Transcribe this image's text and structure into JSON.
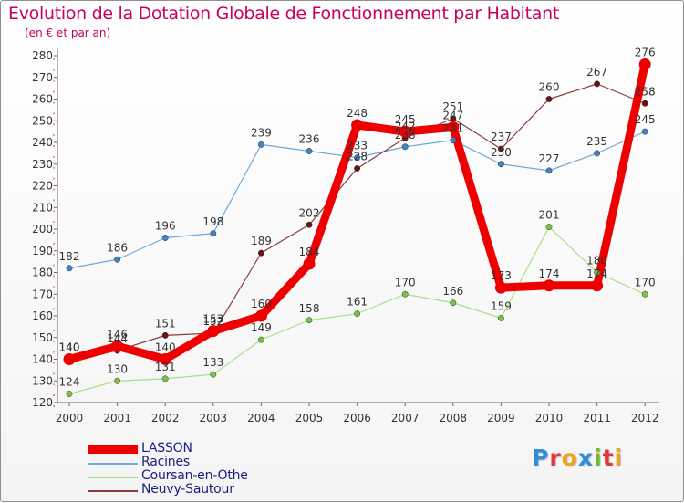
{
  "title": "Evolution de la Dotation Globale de Fonctionnement par Habitant",
  "subtitle": "(en € et par an)",
  "logo": {
    "text": "Proxiti",
    "letter_colors": [
      "#2f8fd8",
      "#e8353a",
      "#f0a21b",
      "#2f8fd8",
      "#73b92e",
      "#e8353a",
      "#f0a21b"
    ]
  },
  "chart_data": {
    "type": "line",
    "title": "Evolution de la Dotation Globale de Fonctionnement par Habitant",
    "subtitle": "(en € et par an)",
    "xlabel": "",
    "ylabel": "",
    "ylim": [
      120,
      280
    ],
    "ytick_step": 10,
    "grid": false,
    "legend_position": "bottom-left",
    "categories": [
      "2000",
      "2001",
      "2002",
      "2003",
      "2004",
      "2005",
      "2006",
      "2007",
      "2008",
      "2009",
      "2010",
      "2011",
      "2012"
    ],
    "series": [
      {
        "name": "LASSON",
        "color": "#ee0000",
        "point_color": "#ee0000",
        "values": [
          140,
          146,
          140,
          153,
          160,
          184,
          248,
          245,
          247,
          173,
          174,
          174,
          276
        ]
      },
      {
        "name": "Racines",
        "color": "#6fa8dc",
        "point_color": "#3d85c6",
        "values": [
          182,
          186,
          196,
          198,
          239,
          236,
          233,
          238,
          241,
          230,
          227,
          235,
          245
        ]
      },
      {
        "name": "Coursan-en-Othe",
        "color": "#a6e086",
        "point_color": "#76c442",
        "values": [
          124,
          130,
          131,
          133,
          149,
          158,
          161,
          170,
          166,
          159,
          201,
          180,
          170
        ]
      },
      {
        "name": "Neuvy-Sautour",
        "color": "#8a3a3a",
        "point_color": "#6a1414",
        "values": [
          140,
          144,
          151,
          152,
          189,
          202,
          228,
          242,
          251,
          237,
          260,
          267,
          258
        ]
      }
    ]
  }
}
